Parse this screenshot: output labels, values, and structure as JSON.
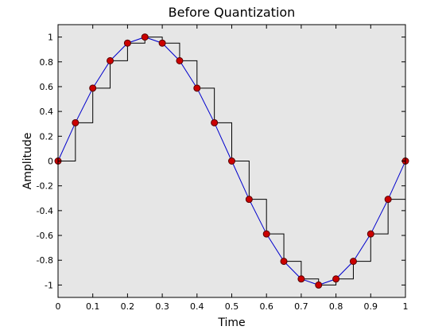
{
  "chart_data": {
    "type": "line",
    "title": "Before Quantization",
    "xlabel": "Time",
    "ylabel": "Amplitude",
    "xlim": [
      0,
      1
    ],
    "ylim": [
      -1.1,
      1.1
    ],
    "grid": false,
    "background_color": "#e6e6e6",
    "x_ticks": [
      0,
      0.1,
      0.2,
      0.3,
      0.4,
      0.5,
      0.6,
      0.7,
      0.8,
      0.9,
      1
    ],
    "x_tick_labels": [
      "0",
      "0.1",
      "0.2",
      "0.3",
      "0.4",
      "0.5",
      "0.6",
      "0.7",
      "0.8",
      "0.9",
      "1"
    ],
    "y_ticks": [
      1,
      0.8,
      0.6,
      0.4,
      0.2,
      0,
      -0.2,
      -0.4,
      -0.6,
      -0.8,
      -1
    ],
    "y_tick_labels": [
      "1",
      "0.8",
      "0.6",
      "0.4",
      "0.2",
      "0",
      "-0.2",
      "-0.4",
      "-0.6",
      "-0.8",
      "-1"
    ],
    "x": [
      0,
      0.05,
      0.1,
      0.15,
      0.2,
      0.25,
      0.3,
      0.35,
      0.4,
      0.45,
      0.5,
      0.55,
      0.6,
      0.65,
      0.7,
      0.75,
      0.8,
      0.85,
      0.9,
      0.95,
      1
    ],
    "series": [
      {
        "style": "staircase",
        "color": "#000000",
        "values": [
          0,
          0.309,
          0.588,
          0.809,
          0.951,
          1,
          0.951,
          0.809,
          0.588,
          0.309,
          0,
          -0.309,
          -0.588,
          -0.809,
          -0.951,
          -1,
          -0.951,
          -0.809,
          -0.588,
          -0.309,
          0
        ]
      },
      {
        "style": "line",
        "color": "#0000cc",
        "values": [
          0,
          0.309,
          0.588,
          0.809,
          0.951,
          1,
          0.951,
          0.809,
          0.588,
          0.309,
          0,
          -0.309,
          -0.588,
          -0.809,
          -0.951,
          -1,
          -0.951,
          -0.809,
          -0.588,
          -0.309,
          0
        ]
      },
      {
        "style": "markers",
        "marker_fill": "#cc0000",
        "marker_edge": "#550000",
        "values": [
          0,
          0.309,
          0.588,
          0.809,
          0.951,
          1,
          0.951,
          0.809,
          0.588,
          0.309,
          0,
          -0.309,
          -0.588,
          -0.809,
          -0.951,
          -1,
          -0.951,
          -0.809,
          -0.588,
          -0.309,
          0
        ]
      }
    ]
  }
}
